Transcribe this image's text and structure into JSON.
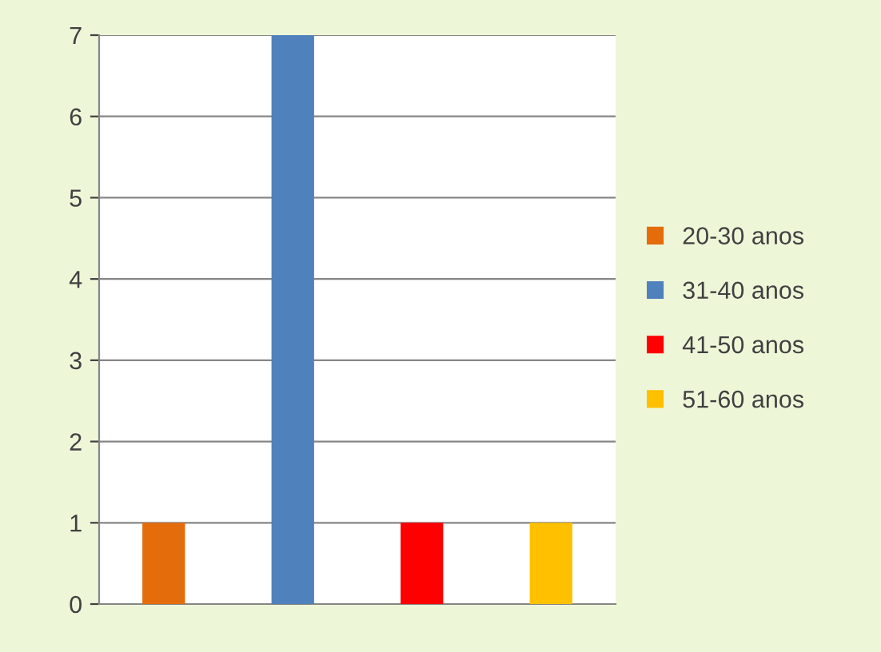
{
  "chart_data": {
    "type": "bar",
    "categories": [
      null,
      null,
      null,
      null
    ],
    "series": [
      {
        "name": "20-30 anos",
        "color": "#e46c0a",
        "values": [
          1,
          null,
          null,
          null
        ]
      },
      {
        "name": "31-40 anos",
        "color": "#4f81bd",
        "values": [
          null,
          7,
          null,
          null
        ]
      },
      {
        "name": "41-50 anos",
        "color": "#ff0000",
        "values": [
          null,
          null,
          1,
          null
        ]
      },
      {
        "name": "51-60 anos",
        "color": "#ffc000",
        "values": [
          null,
          null,
          null,
          1
        ]
      }
    ],
    "ylim": [
      0,
      7
    ],
    "yticks": [
      0,
      1,
      2,
      3,
      4,
      5,
      6,
      7
    ],
    "grid": "y",
    "legend": "right"
  }
}
